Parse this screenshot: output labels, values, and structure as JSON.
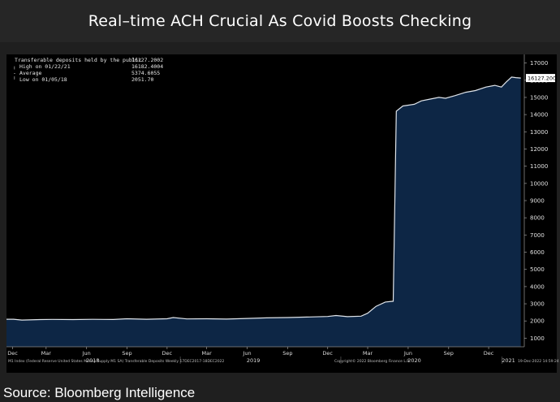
{
  "header": {
    "title": "Real–time ACH Crucial As Covid Boosts Checking"
  },
  "legend": {
    "items": [
      {
        "marker": "square",
        "label": "Transferable deposits held by the public",
        "value": "16127.2002"
      },
      {
        "marker": "high-tick",
        "label": "High on 01/22/21",
        "value": "16182.4004"
      },
      {
        "marker": "average-dash",
        "label": "Average",
        "value": "5374.6055"
      },
      {
        "marker": "low-tick",
        "label": "Low on 01/05/18",
        "value": "2051.70"
      }
    ]
  },
  "last_value_tag": "16127.2002",
  "footer": {
    "left": "M1 Index (Federal Reserve United States Money Supply M1 SA) Transferable Deposits  Weekly 17DEC2017-18DEC2022",
    "center": "Copyright© 2022 Bloomberg Finance L.P.",
    "right": "19-Dec-2022 14:59:24"
  },
  "source": "Source: Bloomberg Intelligence",
  "colors": {
    "area_fill": "#0d2645",
    "line": "#dfe4ea",
    "background": "#000000",
    "tag_bg": "#ffffff",
    "tag_text": "#000000"
  },
  "chart_data": {
    "type": "area",
    "title": "Real–time ACH Crucial As Covid Boosts Checking",
    "series": [
      {
        "name": "Transferable deposits held by the public",
        "points": [
          [
            "2017-12-17",
            2100
          ],
          [
            "2018-01-05",
            2052
          ],
          [
            "2018-02-15",
            2080
          ],
          [
            "2018-03-15",
            2090
          ],
          [
            "2018-05-01",
            2080
          ],
          [
            "2018-06-15",
            2095
          ],
          [
            "2018-08-01",
            2085
          ],
          [
            "2018-09-01",
            2130
          ],
          [
            "2018-10-15",
            2100
          ],
          [
            "2018-12-01",
            2130
          ],
          [
            "2018-12-15",
            2200
          ],
          [
            "2019-01-15",
            2120
          ],
          [
            "2019-03-01",
            2130
          ],
          [
            "2019-04-15",
            2110
          ],
          [
            "2019-06-01",
            2150
          ],
          [
            "2019-07-15",
            2180
          ],
          [
            "2019-09-01",
            2200
          ],
          [
            "2019-10-15",
            2230
          ],
          [
            "2019-12-01",
            2260
          ],
          [
            "2019-12-20",
            2320
          ],
          [
            "2020-01-15",
            2250
          ],
          [
            "2020-02-15",
            2280
          ],
          [
            "2020-03-01",
            2450
          ],
          [
            "2020-03-20",
            2850
          ],
          [
            "2020-04-10",
            3100
          ],
          [
            "2020-04-28",
            3150
          ],
          [
            "2020-05-05",
            14200
          ],
          [
            "2020-05-20",
            14500
          ],
          [
            "2020-06-15",
            14600
          ],
          [
            "2020-07-01",
            14800
          ],
          [
            "2020-07-20",
            14900
          ],
          [
            "2020-08-10",
            15000
          ],
          [
            "2020-08-25",
            14950
          ],
          [
            "2020-09-15",
            15100
          ],
          [
            "2020-10-10",
            15300
          ],
          [
            "2020-11-01",
            15400
          ],
          [
            "2020-11-25",
            15600
          ],
          [
            "2020-12-15",
            15700
          ],
          [
            "2020-12-30",
            15600
          ],
          [
            "2021-01-10",
            15900
          ],
          [
            "2021-01-22",
            16182
          ],
          [
            "2021-02-01",
            16150
          ],
          [
            "2021-02-12",
            16127
          ]
        ]
      }
    ],
    "x_range": [
      "2017-12-01",
      "2021-02-20"
    ],
    "ylim": [
      500,
      17500
    ],
    "y_ticks": [
      1000,
      2000,
      3000,
      4000,
      5000,
      6000,
      7000,
      8000,
      9000,
      10000,
      11000,
      12000,
      13000,
      14000,
      15000,
      16000,
      17000
    ],
    "month_ticks": [
      {
        "date": "2017-12-15",
        "label": "Dec"
      },
      {
        "date": "2018-03-01",
        "label": "Mar"
      },
      {
        "date": "2018-06-01",
        "label": "Jun"
      },
      {
        "date": "2018-09-01",
        "label": "Sep"
      },
      {
        "date": "2018-12-01",
        "label": "Dec"
      },
      {
        "date": "2019-03-01",
        "label": "Mar"
      },
      {
        "date": "2019-06-01",
        "label": "Jun"
      },
      {
        "date": "2019-09-01",
        "label": "Sep"
      },
      {
        "date": "2019-12-01",
        "label": "Dec"
      },
      {
        "date": "2020-03-01",
        "label": "Mar"
      },
      {
        "date": "2020-06-01",
        "label": "Jun"
      },
      {
        "date": "2020-09-01",
        "label": "Sep"
      },
      {
        "date": "2020-12-01",
        "label": "Dec"
      }
    ],
    "year_ticks": [
      {
        "date": "2018-06-15",
        "label": "2018"
      },
      {
        "date": "2019-06-15",
        "label": "2019"
      },
      {
        "date": "2020-06-15",
        "label": "2020"
      },
      {
        "date": "2021-01-15",
        "label": "2021"
      }
    ],
    "grid": false,
    "legend_position": "top-left",
    "y_axis_side": "right"
  }
}
